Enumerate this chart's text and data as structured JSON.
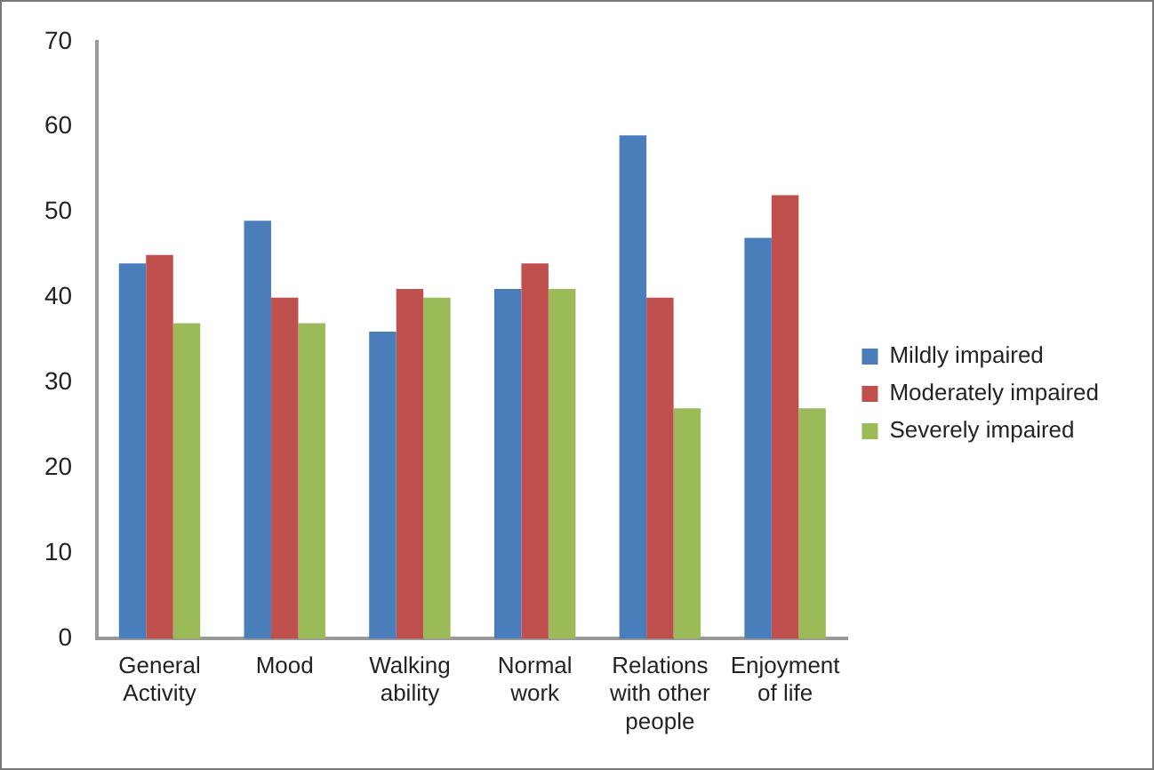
{
  "chart_data": {
    "type": "bar",
    "categories": [
      "General Activity",
      "Mood",
      "Walking ability",
      "Normal work",
      "Relations with other people",
      "Enjoyment of life"
    ],
    "series": [
      {
        "name": "Mildly impaired",
        "color": "#4a7ebb",
        "values": [
          44,
          49,
          36,
          41,
          59,
          47
        ]
      },
      {
        "name": "Moderately impaired",
        "color": "#c0504d",
        "values": [
          45,
          40,
          41,
          44,
          40,
          52
        ]
      },
      {
        "name": "Severely impaired",
        "color": "#9bbb59",
        "values": [
          37,
          37,
          40,
          41,
          27,
          27
        ]
      }
    ],
    "ylim": [
      0,
      70
    ],
    "yticks": [
      0,
      10,
      20,
      30,
      40,
      50,
      60,
      70
    ],
    "grid": false,
    "legend": "right"
  }
}
